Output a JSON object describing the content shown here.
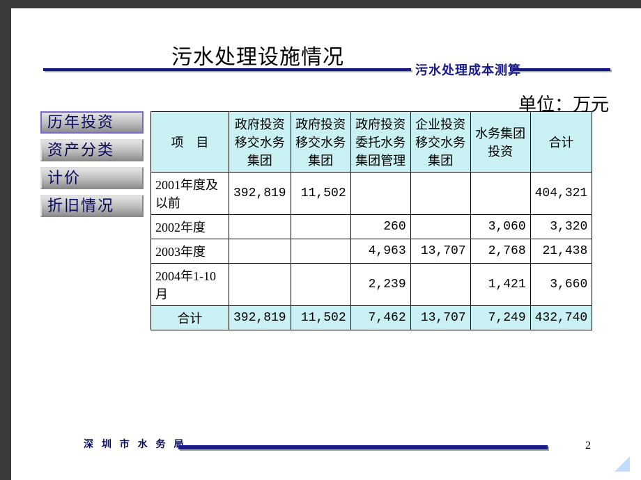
{
  "title": "污水处理设施情况",
  "subtitle": "污水处理成本测算",
  "unit_label": "单位：万元",
  "nav": {
    "items": [
      {
        "label": "历年投资",
        "active": true
      },
      {
        "label": "资产分类",
        "active": false
      },
      {
        "label": "计价",
        "active": false
      },
      {
        "label": "折旧情况",
        "active": false
      }
    ]
  },
  "table": {
    "type": "table",
    "header_bg": "#c9f0f2",
    "border_color": "#000000",
    "columns": [
      "项　目",
      "政府投资移交水务集团",
      "政府投资移交水务集团",
      "政府投资委托水务集团管理",
      "企业投资移交水务集团",
      "水务集团投资",
      "合计"
    ],
    "rows": [
      {
        "label": "2001年度及以前",
        "cells": [
          "392,819",
          "11,502",
          "",
          "",
          "",
          "404,321"
        ]
      },
      {
        "label": "2002年度",
        "cells": [
          "",
          "",
          "260",
          "",
          "3,060",
          "3,320"
        ]
      },
      {
        "label": "2003年度",
        "cells": [
          "",
          "",
          "4,963",
          "13,707",
          "2,768",
          "21,438"
        ]
      },
      {
        "label": "2004年1-10月",
        "cells": [
          "",
          "",
          "2,239",
          "",
          "1,421",
          "3,660"
        ]
      }
    ],
    "sum": {
      "label": "合计",
      "cells": [
        "392,819",
        "11,502",
        "7,462",
        "13,707",
        "7,249",
        "432,740"
      ]
    }
  },
  "footer_org": "深 圳 市 水 务 局",
  "page_number": "2",
  "palette": {
    "rule_color": "#1a1a8a",
    "nav_text_color": "#08085a",
    "header_bg": "#c9f0f2"
  }
}
